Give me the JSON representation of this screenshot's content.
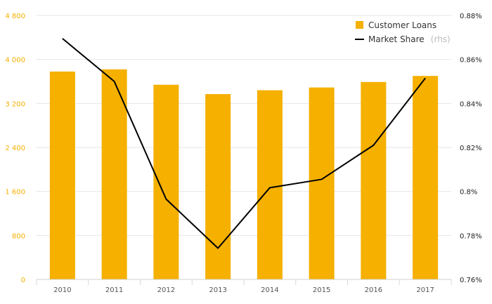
{
  "chart_data": {
    "type": "bar",
    "categories": [
      "2010",
      "2011",
      "2012",
      "2013",
      "2014",
      "2015",
      "2016",
      "2017"
    ],
    "series": [
      {
        "name": "Customer Loans",
        "type": "bar",
        "axis": "left",
        "color": "#f5b000",
        "values": [
          3780,
          3820,
          3540,
          3370,
          3440,
          3490,
          3590,
          3700
        ]
      },
      {
        "name": "Market Share",
        "name_suffix": "(rhs)",
        "type": "line",
        "axis": "right",
        "color": "#000000",
        "values": [
          0.8695,
          0.85,
          0.7965,
          0.7742,
          0.8017,
          0.8055,
          0.821,
          0.8515
        ]
      }
    ],
    "y_left": {
      "ylim": [
        0,
        4800
      ],
      "ticks": [
        0,
        800,
        1600,
        2400,
        3200,
        4000,
        4800
      ],
      "tick_labels": [
        "0",
        "800",
        "1 600",
        "2 400",
        "3 200",
        "4 000",
        "4 800"
      ],
      "color": "#f5b000"
    },
    "y_right": {
      "ylim": [
        0.76,
        0.88
      ],
      "ticks": [
        0.76,
        0.78,
        0.8,
        0.82,
        0.84,
        0.86,
        0.88
      ],
      "tick_labels": [
        "0.76%",
        "0.78%",
        "0.8%",
        "0.82%",
        "0.84%",
        "0.86%",
        "0.88%"
      ],
      "color": "#222222"
    },
    "grid": true,
    "legend_position": "top-right",
    "title": "",
    "xlabel": "",
    "ylabel": ""
  }
}
